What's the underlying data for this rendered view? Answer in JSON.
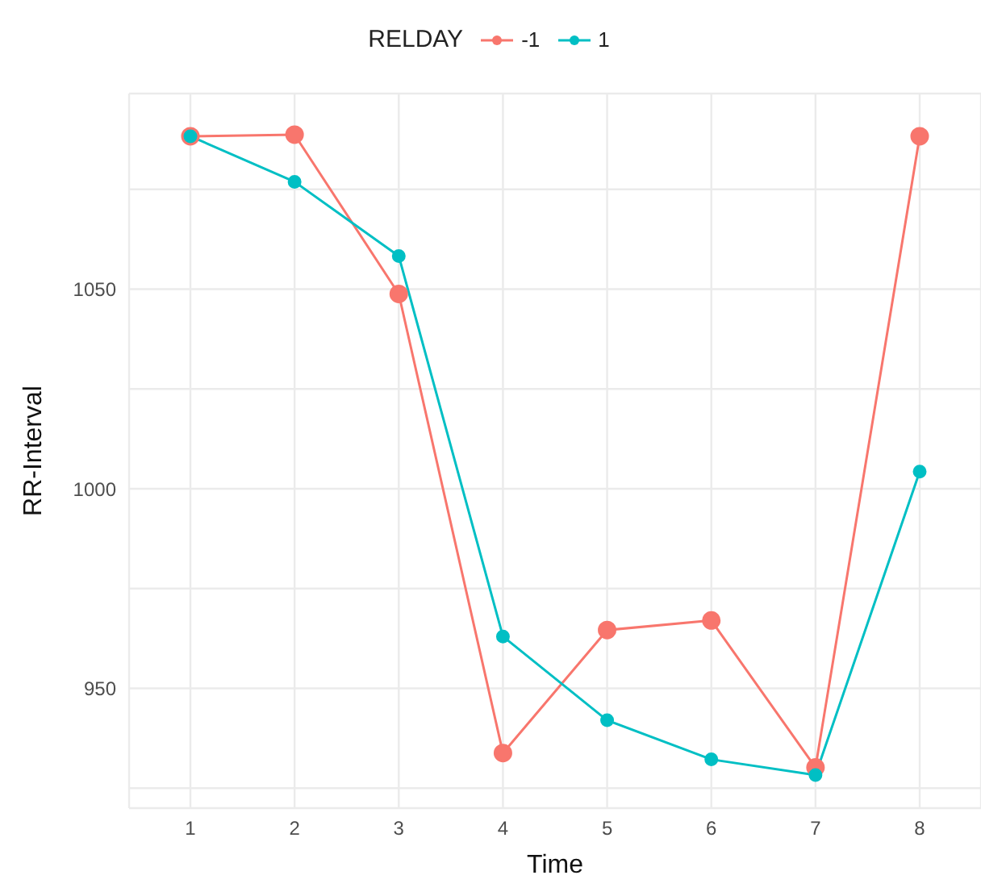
{
  "chart_data": {
    "type": "line",
    "xlabel": "Time",
    "ylabel": "RR-Interval",
    "legend_title": "RELDAY",
    "legend": "top",
    "grid": true,
    "marker": "circle",
    "line_style": "solid",
    "categories": [
      "1",
      "2",
      "3",
      "4",
      "5",
      "6",
      "7",
      "8"
    ],
    "series": [
      {
        "name": "-1",
        "color": "#f8766d",
        "values": [
          1088.3,
          1088.7,
          1048.8,
          933.8,
          964.6,
          967.0,
          930.2,
          1088.3
        ]
      },
      {
        "name": "1",
        "color": "#00bfc4",
        "values": [
          1088.3,
          1076.9,
          1058.3,
          963.0,
          942.0,
          932.2,
          928.3,
          1004.3
        ]
      }
    ],
    "ylim": [
      920,
      1099
    ],
    "yticks": [
      {
        "value": 925,
        "label": null
      },
      950,
      {
        "value": 975,
        "label": null
      },
      1000,
      {
        "value": 1025,
        "label": null
      },
      1050,
      {
        "value": 1075,
        "label": null
      }
    ]
  }
}
